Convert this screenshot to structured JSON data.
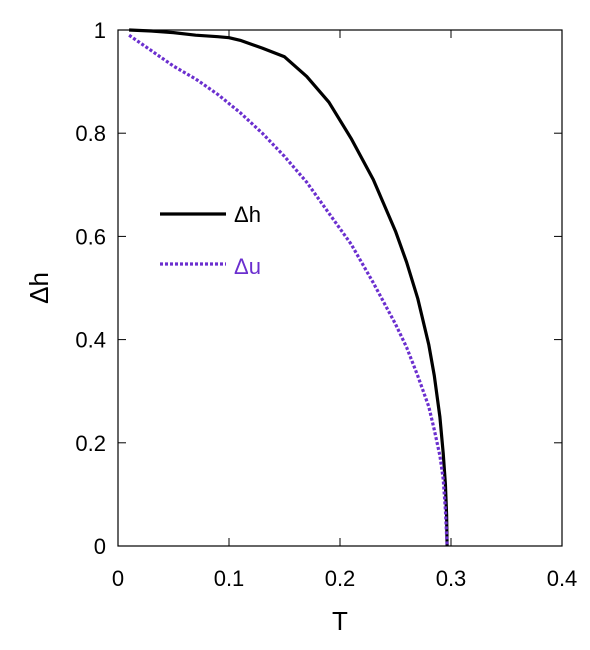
{
  "chart_data": {
    "type": "line",
    "xlabel": "T",
    "ylabel": "Δh",
    "xlim": [
      0,
      0.4
    ],
    "ylim": [
      0,
      1
    ],
    "xticks": [
      "0",
      "0.1",
      "0.2",
      "0.3",
      "0.4"
    ],
    "yticks": [
      "0",
      "0.2",
      "0.4",
      "0.6",
      "0.8",
      "1"
    ],
    "grid": false,
    "legend_position": "center-left",
    "series": [
      {
        "name": "Δh",
        "color": "#000000",
        "style": "solid",
        "x": [
          0.01,
          0.03,
          0.05,
          0.07,
          0.09,
          0.1,
          0.11,
          0.13,
          0.15,
          0.17,
          0.19,
          0.21,
          0.23,
          0.25,
          0.26,
          0.27,
          0.28,
          0.285,
          0.29,
          0.293,
          0.295,
          0.296,
          0.2965
        ],
        "y": [
          1.0,
          0.998,
          0.995,
          0.99,
          0.987,
          0.985,
          0.98,
          0.965,
          0.948,
          0.91,
          0.86,
          0.79,
          0.71,
          0.61,
          0.55,
          0.48,
          0.39,
          0.33,
          0.25,
          0.18,
          0.12,
          0.06,
          0.0
        ]
      },
      {
        "name": "Δu",
        "color": "#6b2fcf",
        "style": "dotted",
        "x": [
          0.01,
          0.03,
          0.05,
          0.07,
          0.09,
          0.11,
          0.13,
          0.15,
          0.17,
          0.19,
          0.21,
          0.23,
          0.25,
          0.26,
          0.27,
          0.28,
          0.285,
          0.29,
          0.293,
          0.295,
          0.2965
        ],
        "y": [
          0.99,
          0.96,
          0.93,
          0.905,
          0.875,
          0.84,
          0.8,
          0.755,
          0.705,
          0.645,
          0.585,
          0.51,
          0.43,
          0.385,
          0.33,
          0.27,
          0.225,
          0.175,
          0.13,
          0.07,
          0.0
        ]
      }
    ]
  }
}
